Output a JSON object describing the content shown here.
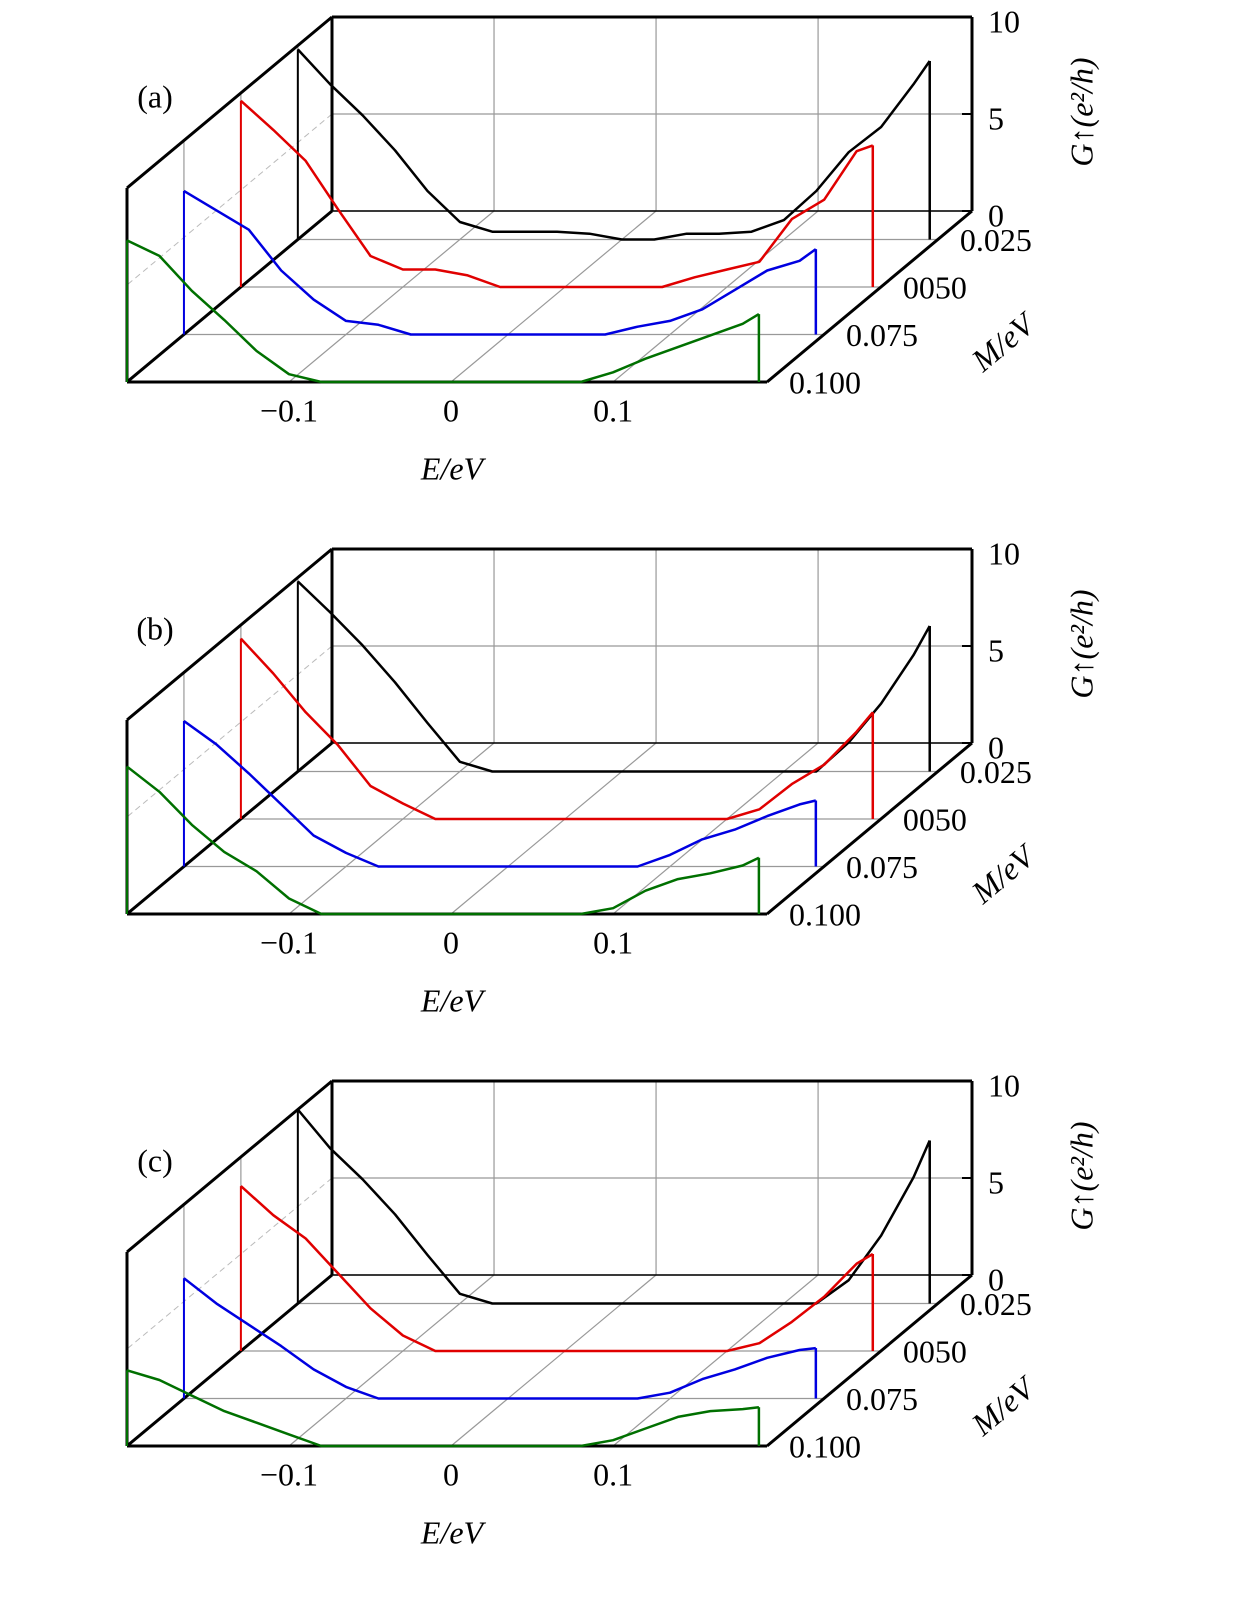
{
  "chart_data": [
    {
      "type": "line",
      "panel_label": "(a)",
      "xlabel": "E/eV",
      "ylabel": "G↑(e²/h)",
      "mlabel": "M/eV",
      "x": [
        -0.2,
        -0.18,
        -0.16,
        -0.14,
        -0.12,
        -0.1,
        -0.08,
        -0.06,
        -0.04,
        -0.02,
        0,
        0.02,
        0.04,
        0.06,
        0.08,
        0.1,
        0.12,
        0.14,
        0.16,
        0.18,
        0.19
      ],
      "xlim": [
        -0.2,
        0.195
      ],
      "xticks": [
        {
          "value": -0.1,
          "label": "−0.1"
        },
        0,
        0.1
      ],
      "ylim": [
        0,
        10
      ],
      "yticks": [
        0,
        5,
        10
      ],
      "mlim": [
        0.01,
        0.1
      ],
      "mticks": [
        0.025,
        {
          "value": 0.05,
          "label": "0050"
        },
        0.075,
        {
          "value": 0.1,
          "label": "0.100"
        }
      ],
      "grid": true,
      "series": [
        {
          "m": 0.025,
          "color": "#000000",
          "values": [
            9.8,
            8,
            6.4,
            4.6,
            2.5,
            0.9,
            0.4,
            0.4,
            0.4,
            0.3,
            0,
            0,
            0.3,
            0.3,
            0.4,
            1.0,
            2.5,
            4.5,
            5.8,
            8,
            9.2
          ]
        },
        {
          "m": 0.05,
          "color": "#e00000",
          "values": [
            9.6,
            8.1,
            6.5,
            4,
            1.6,
            0.9,
            0.9,
            0.6,
            0,
            0,
            0,
            0,
            0,
            0,
            0.5,
            0.9,
            1.3,
            3.5,
            4.5,
            7,
            7.3
          ]
        },
        {
          "m": 0.075,
          "color": "#0000e0",
          "values": [
            7.4,
            6.4,
            5.4,
            3.3,
            1.8,
            0.7,
            0.5,
            0,
            0,
            0,
            0,
            0,
            0,
            0,
            0.4,
            0.7,
            1.3,
            2.3,
            3.3,
            3.8,
            4.4
          ]
        },
        {
          "m": 0.1,
          "color": "#007000",
          "values": [
            7.3,
            6.5,
            4.7,
            3.2,
            1.6,
            0.4,
            0,
            0,
            0,
            0,
            0,
            0,
            0,
            0,
            0,
            0.5,
            1.2,
            1.8,
            2.4,
            3.0,
            3.5
          ]
        }
      ]
    },
    {
      "type": "line",
      "panel_label": "(b)",
      "xlabel": "E/eV",
      "ylabel": "G↑(e²/h)",
      "mlabel": "M/eV",
      "x": [
        -0.2,
        -0.18,
        -0.16,
        -0.14,
        -0.12,
        -0.1,
        -0.08,
        -0.06,
        -0.04,
        -0.02,
        0,
        0.02,
        0.04,
        0.06,
        0.08,
        0.1,
        0.12,
        0.14,
        0.16,
        0.18,
        0.19
      ],
      "xlim": [
        -0.2,
        0.195
      ],
      "xticks": [
        {
          "value": -0.1,
          "label": "−0.1"
        },
        0,
        0.1
      ],
      "ylim": [
        0,
        10
      ],
      "yticks": [
        0,
        5,
        10
      ],
      "mlim": [
        0.01,
        0.1
      ],
      "mticks": [
        0.025,
        {
          "value": 0.05,
          "label": "0050"
        },
        0.075,
        {
          "value": 0.1,
          "label": "0.100"
        }
      ],
      "grid": true,
      "series": [
        {
          "m": 0.025,
          "color": "#000000",
          "values": [
            9.8,
            8.2,
            6.5,
            4.6,
            2.5,
            0.5,
            0,
            0,
            0,
            0,
            0,
            0,
            0,
            0,
            0,
            0,
            0,
            1.5,
            3.5,
            6,
            7.5
          ]
        },
        {
          "m": 0.05,
          "color": "#e00000",
          "values": [
            9.3,
            7.5,
            5.5,
            3.8,
            1.7,
            0.8,
            0,
            0,
            0,
            0,
            0,
            0,
            0,
            0,
            0,
            0,
            0.5,
            1.8,
            2.8,
            4.5,
            5.5
          ]
        },
        {
          "m": 0.075,
          "color": "#0000e0",
          "values": [
            7.5,
            6.3,
            4.8,
            3.2,
            1.6,
            0.7,
            0,
            0,
            0,
            0,
            0,
            0,
            0,
            0,
            0,
            0.6,
            1.4,
            1.9,
            2.6,
            3.2,
            3.4
          ]
        },
        {
          "m": 0.1,
          "color": "#007000",
          "values": [
            7.6,
            6.3,
            4.6,
            3.2,
            2.2,
            0.8,
            0,
            0,
            0,
            0,
            0,
            0,
            0,
            0,
            0,
            0.3,
            1.2,
            1.8,
            2.1,
            2.5,
            2.9
          ]
        }
      ]
    },
    {
      "type": "line",
      "panel_label": "(c)",
      "xlabel": "E/eV",
      "ylabel": "G↑(e²/h)",
      "mlabel": "M/eV",
      "x": [
        -0.2,
        -0.18,
        -0.16,
        -0.14,
        -0.12,
        -0.1,
        -0.08,
        -0.06,
        -0.04,
        -0.02,
        0,
        0.02,
        0.04,
        0.06,
        0.08,
        0.1,
        0.12,
        0.14,
        0.16,
        0.18,
        0.19
      ],
      "xlim": [
        -0.2,
        0.195
      ],
      "xticks": [
        {
          "value": -0.1,
          "label": "−0.1"
        },
        0,
        0.1
      ],
      "ylim": [
        0,
        10
      ],
      "yticks": [
        0,
        5,
        10
      ],
      "mlim": [
        0.01,
        0.1
      ],
      "mticks": [
        0.025,
        {
          "value": 0.05,
          "label": "0050"
        },
        0.075,
        {
          "value": 0.1,
          "label": "0.100"
        }
      ],
      "grid": true,
      "series": [
        {
          "m": 0.025,
          "color": "#000000",
          "values": [
            10,
            8,
            6.4,
            4.6,
            2.5,
            0.5,
            0,
            0,
            0,
            0,
            0,
            0,
            0,
            0,
            0,
            0,
            0,
            1.2,
            3.5,
            6.5,
            8.4
          ]
        },
        {
          "m": 0.05,
          "color": "#e00000",
          "values": [
            8.5,
            7,
            5.8,
            4,
            2.2,
            0.8,
            0,
            0,
            0,
            0,
            0,
            0,
            0,
            0,
            0,
            0,
            0.4,
            1.5,
            2.8,
            4.5,
            5
          ]
        },
        {
          "m": 0.075,
          "color": "#0000e0",
          "values": [
            6.2,
            4.9,
            3.8,
            2.7,
            1.5,
            0.6,
            0,
            0,
            0,
            0,
            0,
            0,
            0,
            0,
            0,
            0.3,
            1,
            1.5,
            2.1,
            2.5,
            2.6
          ]
        },
        {
          "m": 0.1,
          "color": "#007000",
          "values": [
            3.9,
            3.4,
            2.6,
            1.8,
            1.2,
            0.6,
            0,
            0,
            0,
            0,
            0,
            0,
            0,
            0,
            0,
            0.3,
            0.9,
            1.5,
            1.8,
            1.9,
            2.0
          ]
        }
      ]
    }
  ]
}
